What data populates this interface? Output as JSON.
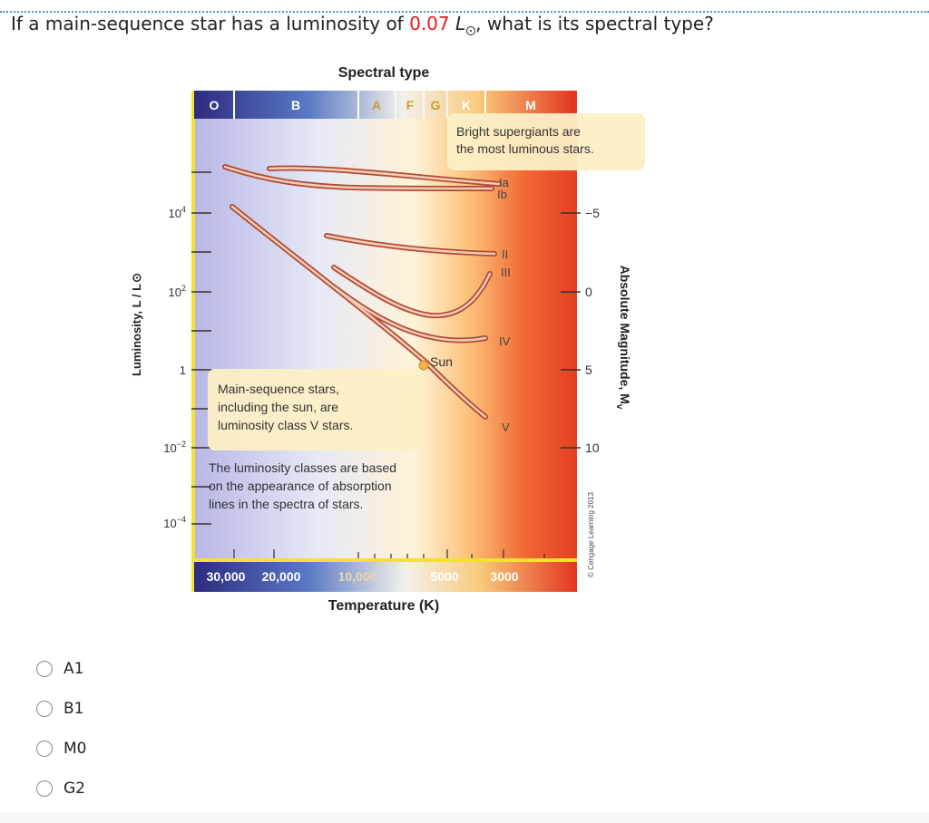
{
  "question": {
    "prefix": "If a main-sequence star has a luminosity of ",
    "value": "0.07",
    "unit": "L",
    "suffix": ", what is its spectral type?"
  },
  "diagram": {
    "top_title": "Spectral type",
    "spectral_types": [
      "O",
      "B",
      "A",
      "F",
      "G",
      "K",
      "M"
    ],
    "y_label": "Luminosity, L / L",
    "y_ticks": [
      {
        "base": "10",
        "exp": "4"
      },
      {
        "base": "10",
        "exp": "2"
      },
      {
        "base": "1",
        "exp": ""
      },
      {
        "base": "10",
        "exp": "−2"
      },
      {
        "base": "10",
        "exp": "−4"
      }
    ],
    "right_label": "Absolute Magnitude, M",
    "right_label_sub": "v",
    "mag_ticks": [
      "−5",
      "0",
      "5",
      "10"
    ],
    "x_title": "Temperature (K)",
    "x_ticks": [
      "30,000",
      "20,000",
      "10,000",
      "5000",
      "3000"
    ],
    "lum_classes": [
      "Ia",
      "Ib",
      "II",
      "III",
      "IV",
      "V"
    ],
    "sun_label": "Sun",
    "callout_supergiants": [
      "Bright supergiants are",
      "the most luminous stars."
    ],
    "callout_main_sequence": [
      "Main-sequence stars,",
      "including the sun, are",
      "luminosity class V stars."
    ],
    "callout_classes": [
      "The luminosity classes are based",
      "on the appearance of absorption",
      "lines in the spectra of stars."
    ],
    "credit": "© Cengage Learning 2013"
  },
  "choices": [
    "A1",
    "B1",
    "M0",
    "G2"
  ]
}
